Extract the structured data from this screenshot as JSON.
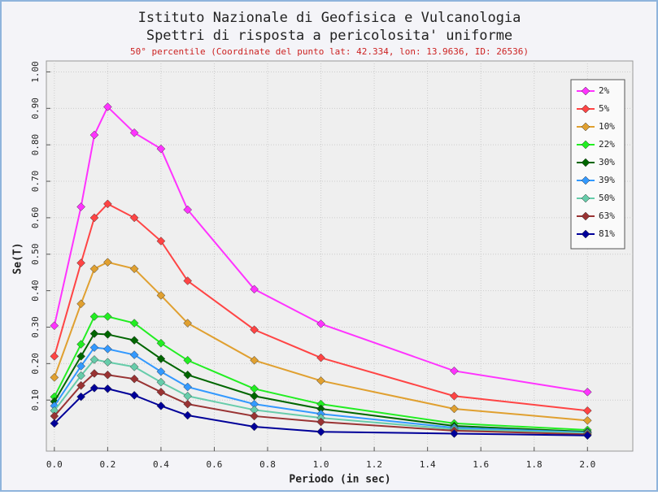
{
  "chart_data": {
    "type": "line",
    "title": "Istituto Nazionale di Geofisica e Vulcanologia",
    "subtitle": "Spettri di risposta a pericolosita' uniforme",
    "caption": "50° percentile (Coordinate del punto lat: 42.334, lon: 13.9636, ID: 26536)",
    "x_label": "Periodo (in sec)",
    "y_label": "Se(T)",
    "x": [
      0,
      0.1,
      0.15,
      0.2,
      0.3,
      0.4,
      0.5,
      0.75,
      1.0,
      1.5,
      2.0
    ],
    "xlim": [
      -0.03,
      2.17
    ],
    "ylim": [
      -0.04,
      1.03
    ],
    "xticks": [
      {
        "value": 0,
        "label": "0.0"
      },
      {
        "value": 0.2,
        "label": "0.2"
      },
      {
        "value": 0.4,
        "label": "0.4"
      },
      {
        "value": 0.6,
        "label": "0.6"
      },
      {
        "value": 0.8,
        "label": "0.8"
      },
      {
        "value": 1,
        "label": "1.0"
      },
      {
        "value": 1.2,
        "label": "1.2"
      },
      {
        "value": 1.4,
        "label": "1.4"
      },
      {
        "value": 1.6,
        "label": "1.6"
      },
      {
        "value": 1.8,
        "label": "1.8"
      },
      {
        "value": 2,
        "label": "2.0"
      }
    ],
    "yticks": [
      {
        "value": 0.1,
        "label": "0.10"
      },
      {
        "value": 0.2,
        "label": "0.20"
      },
      {
        "value": 0.3,
        "label": "0.30"
      },
      {
        "value": 0.4,
        "label": "0.40"
      },
      {
        "value": 0.5,
        "label": "0.50"
      },
      {
        "value": 0.6,
        "label": "0.60"
      },
      {
        "value": 0.7,
        "label": "0.70"
      },
      {
        "value": 0.8,
        "label": "0.80"
      },
      {
        "value": 0.9,
        "label": "0.90"
      },
      {
        "value": 1,
        "label": "1.00"
      }
    ],
    "grid": true,
    "legend": "top-right",
    "series": [
      {
        "name": "2%",
        "color": "#ff33ff",
        "values": [
          0.304,
          0.63,
          0.827,
          0.904,
          0.833,
          0.789,
          0.622,
          0.404,
          0.309,
          0.18,
          0.122
        ]
      },
      {
        "name": "5%",
        "color": "#ff4444",
        "values": [
          0.22,
          0.476,
          0.6,
          0.638,
          0.6,
          0.536,
          0.427,
          0.293,
          0.216,
          0.111,
          0.071
        ]
      },
      {
        "name": "10%",
        "color": "#e0a030",
        "values": [
          0.162,
          0.364,
          0.46,
          0.478,
          0.46,
          0.387,
          0.311,
          0.209,
          0.153,
          0.076,
          0.044
        ]
      },
      {
        "name": "22%",
        "color": "#22ee22",
        "values": [
          0.109,
          0.253,
          0.329,
          0.329,
          0.311,
          0.256,
          0.209,
          0.131,
          0.089,
          0.036,
          0.018
        ]
      },
      {
        "name": "30%",
        "color": "#006600",
        "values": [
          0.096,
          0.22,
          0.282,
          0.28,
          0.264,
          0.213,
          0.169,
          0.111,
          0.076,
          0.029,
          0.013
        ]
      },
      {
        "name": "39%",
        "color": "#3399ff",
        "values": [
          0.084,
          0.193,
          0.244,
          0.24,
          0.224,
          0.178,
          0.136,
          0.089,
          0.062,
          0.024,
          0.011
        ]
      },
      {
        "name": "50%",
        "color": "#66ccaa",
        "values": [
          0.071,
          0.167,
          0.211,
          0.204,
          0.191,
          0.149,
          0.111,
          0.073,
          0.051,
          0.02,
          0.009
        ]
      },
      {
        "name": "63%",
        "color": "#993333",
        "values": [
          0.056,
          0.14,
          0.173,
          0.169,
          0.158,
          0.122,
          0.089,
          0.056,
          0.04,
          0.016,
          0.006
        ]
      },
      {
        "name": "81%",
        "color": "#000099",
        "values": [
          0.036,
          0.109,
          0.133,
          0.131,
          0.113,
          0.084,
          0.058,
          0.027,
          0.013,
          0.008,
          0.003
        ]
      }
    ]
  }
}
